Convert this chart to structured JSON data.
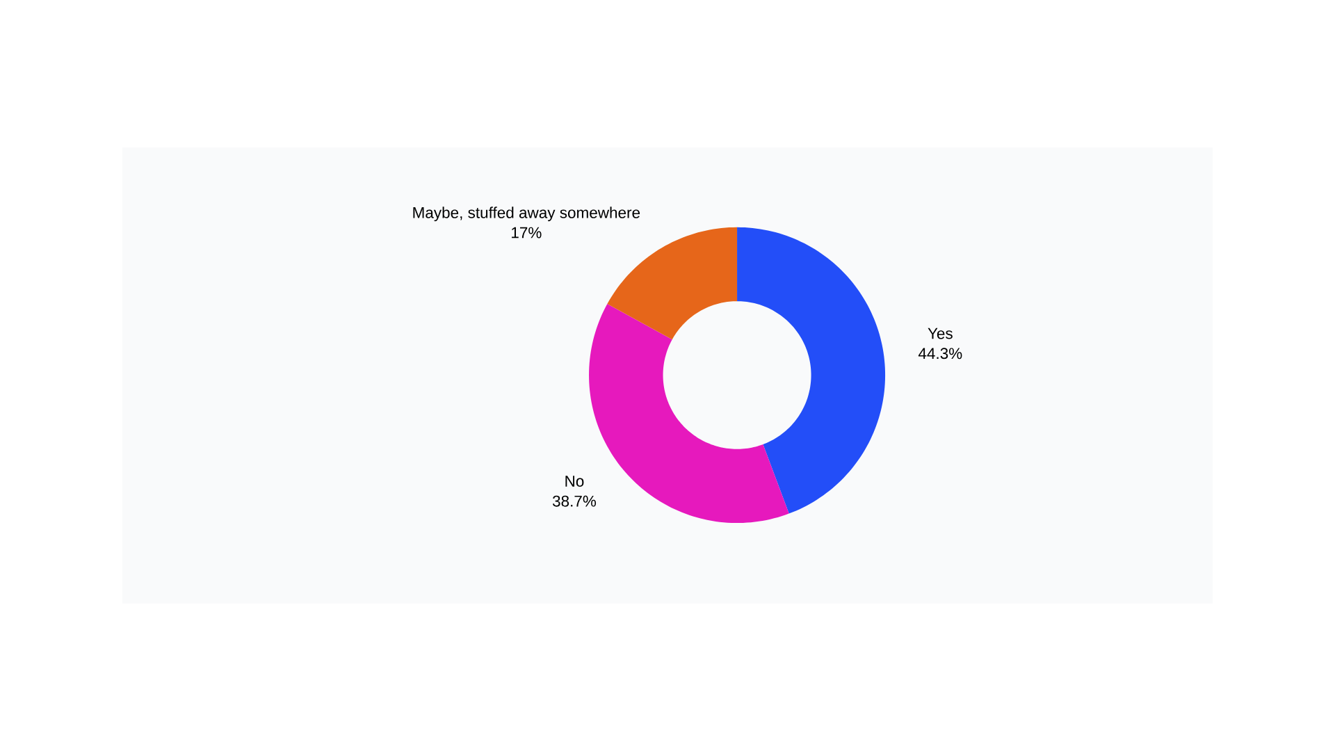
{
  "chart_data": {
    "type": "donut",
    "categories": [
      "Yes",
      "No",
      "Maybe, stuffed away somewhere"
    ],
    "values": [
      44.3,
      38.7,
      17
    ],
    "value_labels": [
      "44.3%",
      "38.7%",
      "17%"
    ],
    "colors": [
      "#234ef8",
      "#e619bd",
      "#e6661a"
    ]
  }
}
